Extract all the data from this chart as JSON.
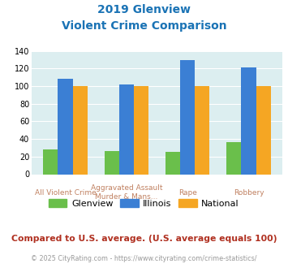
{
  "title_line1": "2019 Glenview",
  "title_line2": "Violent Crime Comparison",
  "cat_labels_line1": [
    "",
    "Aggravated Assault",
    "",
    ""
  ],
  "cat_labels_line2": [
    "All Violent Crime",
    "Murder & Mans...",
    "Rape",
    "Robbery"
  ],
  "glenview": [
    28,
    26,
    25,
    36
  ],
  "illinois": [
    108,
    102,
    130,
    121
  ],
  "national": [
    100,
    100,
    100,
    100
  ],
  "colors": {
    "glenview": "#6abf4b",
    "illinois": "#3b7fd4",
    "national": "#f5a623"
  },
  "ylim": [
    0,
    140
  ],
  "yticks": [
    0,
    20,
    40,
    60,
    80,
    100,
    120,
    140
  ],
  "title_color": "#1a73b5",
  "plot_bg": "#dceef0",
  "label_color": "#c08060",
  "footer_text": "Compared to U.S. average. (U.S. average equals 100)",
  "copyright_text": "© 2025 CityRating.com - https://www.cityrating.com/crime-statistics/",
  "footer_color": "#b03020",
  "copyright_color": "#999999",
  "legend_labels": [
    "Glenview",
    "Illinois",
    "National"
  ]
}
